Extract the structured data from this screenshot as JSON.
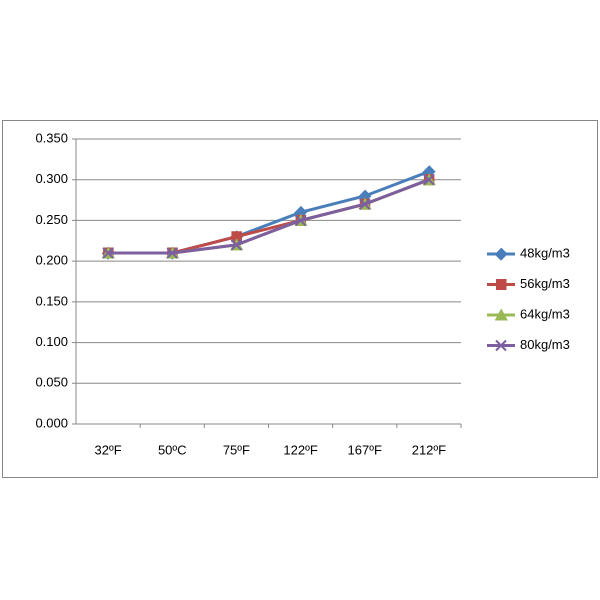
{
  "chart_data": {
    "type": "line",
    "categories": [
      "32ºF",
      "50ºC",
      "75ºF",
      "122ºF",
      "167ºF",
      "212ºF"
    ],
    "series": [
      {
        "name": "48kg/m3",
        "color": "#4a7ebb",
        "marker": "diamond",
        "values": [
          0.21,
          0.21,
          0.23,
          0.26,
          0.28,
          0.31
        ]
      },
      {
        "name": "56kg/m3",
        "color": "#be4b48",
        "marker": "square",
        "values": [
          0.21,
          0.21,
          0.23,
          0.25,
          0.27,
          0.3
        ]
      },
      {
        "name": "64kg/m3",
        "color": "#98b954",
        "marker": "triangle",
        "values": [
          0.21,
          0.21,
          0.22,
          0.25,
          0.27,
          0.3
        ]
      },
      {
        "name": "80kg/m3",
        "color": "#7d5fa0",
        "marker": "x",
        "values": [
          0.21,
          0.21,
          0.22,
          0.25,
          0.27,
          0.3
        ]
      }
    ],
    "ylim": [
      0,
      0.35
    ],
    "yticks": [
      {
        "value": 0,
        "label": "0.000"
      },
      {
        "value": 0.05,
        "label": "0.050"
      },
      {
        "value": 0.1,
        "label": "0.100"
      },
      {
        "value": 0.15,
        "label": "0.150"
      },
      {
        "value": 0.2,
        "label": "0.200"
      },
      {
        "value": 0.25,
        "label": "0.250"
      },
      {
        "value": 0.3,
        "label": "0.300"
      },
      {
        "value": 0.35,
        "label": "0.350"
      }
    ],
    "grid": true,
    "legend": "right"
  }
}
